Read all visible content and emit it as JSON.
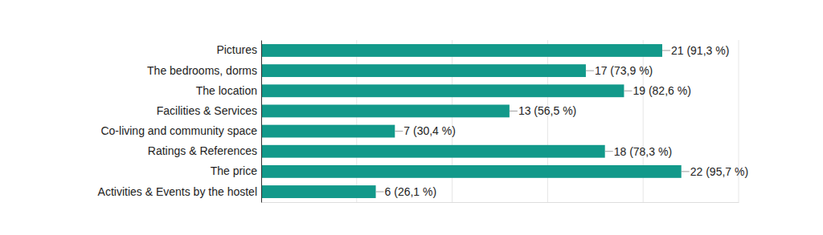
{
  "chart_data": {
    "type": "bar",
    "orientation": "horizontal",
    "categories": [
      "Pictures",
      "The bedrooms, dorms",
      "The location",
      "Facilities & Services",
      "Co-living and community space",
      "Ratings & References",
      "The price",
      "Activities & Events by the hostel"
    ],
    "values": [
      21,
      17,
      19,
      13,
      7,
      18,
      22,
      6
    ],
    "value_labels": [
      "21 (91,3 %)",
      "17 (73,9 %)",
      "19 (82,6 %)",
      "13 (56,5 %)",
      "7 (30,4 %)",
      "18 (78,3 %)",
      "22 (95,7 %)",
      "6 (26,1 %)"
    ],
    "color": "#12998a",
    "xlim": [
      0,
      25
    ],
    "xticks": [
      0,
      5,
      10,
      15,
      20,
      25
    ],
    "grid": true,
    "data_labels": true,
    "tick_labels": "y"
  }
}
